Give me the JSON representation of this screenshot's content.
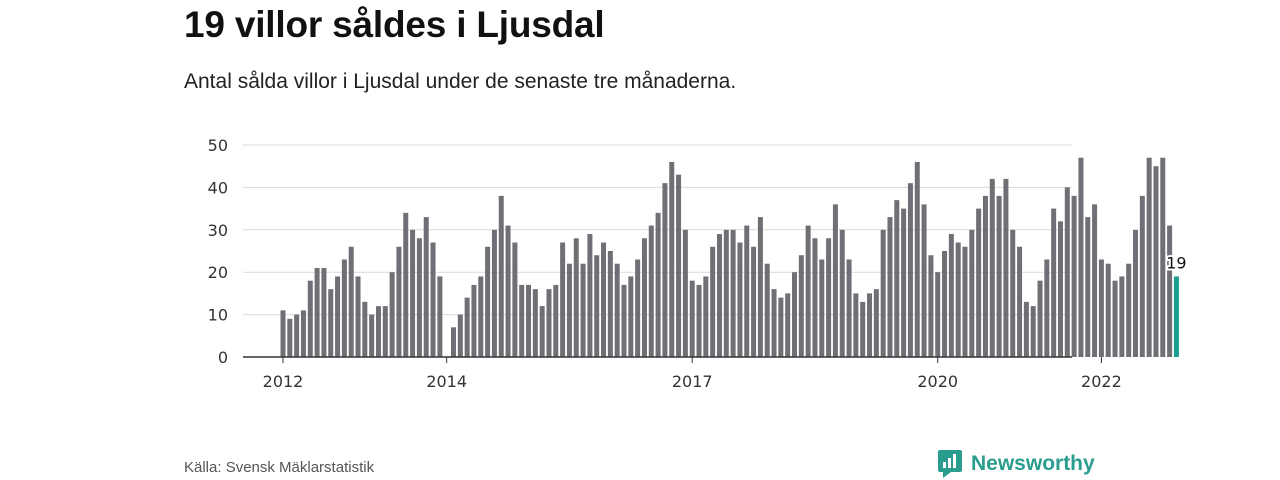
{
  "header": {
    "title": "19 villor såldes i Ljusdal",
    "subtitle": "Antal sålda villor i Ljusdal under de senaste tre månaderna."
  },
  "footer": {
    "source": "Källa: Svensk Mäklarstatistik",
    "brand": "Newsworthy",
    "brand_icon": "newsworthy-logo-icon"
  },
  "colors": {
    "bar": "#6f6f75",
    "highlight": "#1a9e8f",
    "grid": "#d9d9d9",
    "axis": "#333333",
    "brand": "#2a9d8f"
  },
  "chart_data": {
    "type": "bar",
    "ylim": [
      0,
      50
    ],
    "yticks": [
      0,
      10,
      20,
      30,
      40,
      50
    ],
    "xticks": [
      "2012",
      "2014",
      "2017",
      "2020",
      "2022"
    ],
    "x_start": "2012-01",
    "frequency": "monthly",
    "values": [
      11,
      9,
      10,
      11,
      18,
      21,
      21,
      16,
      19,
      23,
      26,
      19,
      13,
      10,
      12,
      12,
      20,
      26,
      34,
      30,
      28,
      33,
      27,
      19,
      0,
      7,
      10,
      14,
      17,
      19,
      26,
      30,
      38,
      31,
      27,
      17,
      17,
      16,
      12,
      16,
      17,
      27,
      22,
      28,
      22,
      29,
      24,
      27,
      25,
      22,
      17,
      19,
      23,
      28,
      31,
      34,
      41,
      46,
      43,
      30,
      18,
      17,
      19,
      26,
      29,
      30,
      30,
      27,
      31,
      26,
      33,
      22,
      16,
      14,
      15,
      20,
      24,
      31,
      28,
      23,
      28,
      36,
      30,
      23,
      15,
      13,
      15,
      16,
      30,
      33,
      37,
      35,
      41,
      46,
      36,
      24,
      20,
      25,
      29,
      27,
      26,
      30,
      35,
      38,
      42,
      38,
      42,
      30,
      26,
      13,
      12,
      18,
      23,
      35,
      32,
      40,
      38,
      47,
      33,
      36,
      23,
      22,
      18,
      19,
      22,
      30,
      38,
      47,
      45,
      47,
      31,
      19
    ],
    "highlight_label": "19"
  }
}
